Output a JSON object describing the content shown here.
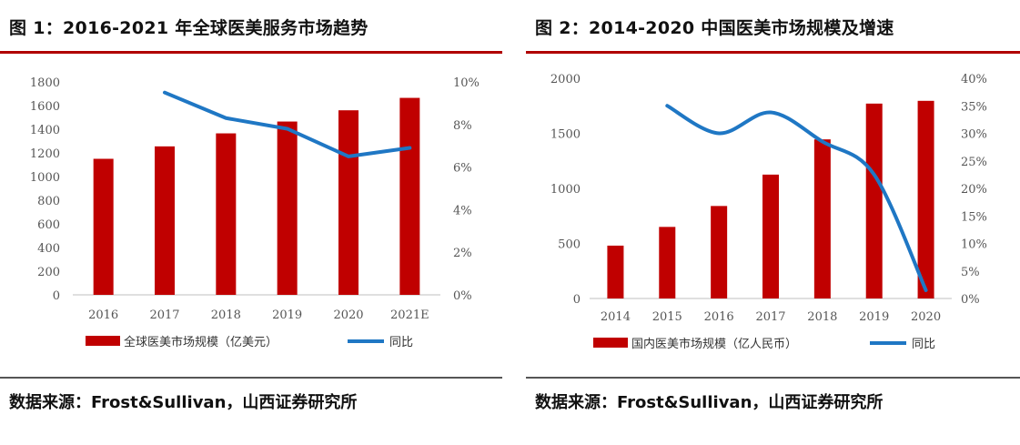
{
  "charts": [
    {
      "title": "图 1：2016-2021 年全球医美服务市场趋势",
      "source": "数据来源：Frost&Sullivan，山西证券研究所",
      "chart_data": {
        "type": "bar",
        "categories": [
          "2016",
          "2017",
          "2018",
          "2019",
          "2020",
          "2021E"
        ],
        "series": [
          {
            "name": "全球医美市场规模（亿美元）",
            "type": "bar",
            "axis": "left",
            "values": [
              1150,
              1255,
              1365,
              1465,
              1560,
              1665
            ],
            "color": "#c00000"
          },
          {
            "name": "同比",
            "type": "line",
            "axis": "right",
            "values": [
              null,
              9.5,
              8.3,
              7.8,
              6.5,
              6.9
            ],
            "color": "#1f77c4"
          }
        ],
        "ylim_left": [
          0,
          1800
        ],
        "yticks_left": [
          "0",
          "200",
          "400",
          "600",
          "800",
          "1000",
          "1200",
          "1400",
          "1600",
          "1800"
        ],
        "ylim_right": [
          0,
          10
        ],
        "yticks_right": [
          "0%",
          "2%",
          "4%",
          "6%",
          "8%",
          "10%"
        ],
        "legend_position": "bottom",
        "grid": false
      }
    },
    {
      "title": "图 2：2014-2020 中国医美市场规模及增速",
      "source": "数据来源：Frost&Sullivan，山西证券研究所",
      "chart_data": {
        "type": "bar",
        "categories": [
          "2014",
          "2015",
          "2016",
          "2017",
          "2018",
          "2019",
          "2020"
        ],
        "series": [
          {
            "name": "国内医美市场规模（亿人民币）",
            "type": "bar",
            "axis": "left",
            "values": [
              480,
              650,
              840,
              1125,
              1445,
              1770,
              1795
            ],
            "color": "#c00000"
          },
          {
            "name": "同比",
            "type": "line",
            "axis": "right",
            "values": [
              null,
              35,
              30,
              33.8,
              28.5,
              22.5,
              1.5
            ],
            "color": "#1f77c4"
          }
        ],
        "ylim_left": [
          0,
          2000
        ],
        "yticks_left": [
          "0",
          "500",
          "1000",
          "1500",
          "2000"
        ],
        "ylim_right": [
          0,
          40
        ],
        "yticks_right": [
          "0%",
          "5%",
          "10%",
          "15%",
          "20%",
          "25%",
          "30%",
          "35%",
          "40%"
        ],
        "legend_position": "bottom",
        "grid": false
      }
    }
  ]
}
